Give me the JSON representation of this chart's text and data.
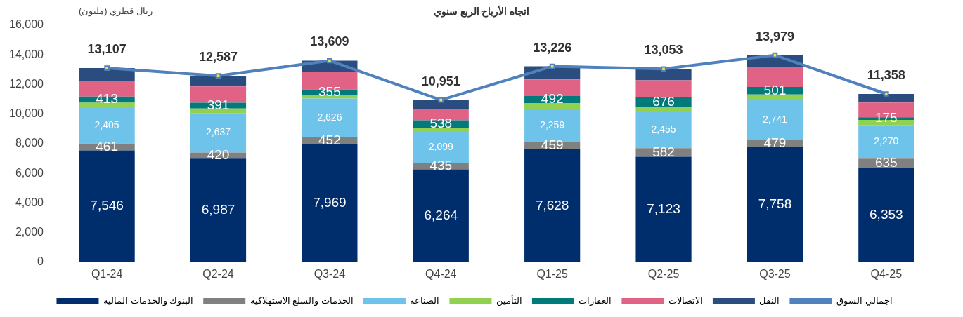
{
  "chart_data": {
    "type": "bar",
    "stacked": true,
    "title": "اتجاه الأرباح الربع سنوي",
    "ylabel": "ريال قطري (مليون)",
    "categories": [
      "Q1-24",
      "Q2-24",
      "Q3-24",
      "Q4-24",
      "Q1-25",
      "Q2-25",
      "Q3-25",
      "Q4-25"
    ],
    "ylim": [
      0,
      16000
    ],
    "yticks": [
      {
        "value": 0,
        "label": "0"
      },
      {
        "value": 2000,
        "label": "2,000"
      },
      {
        "value": 4000,
        "label": "4,000"
      },
      {
        "value": 6000,
        "label": "6,000"
      },
      {
        "value": 8000,
        "label": "8,000"
      },
      {
        "value": 10000,
        "label": "10,000"
      },
      {
        "value": 12000,
        "label": "12,000"
      },
      {
        "value": 14000,
        "label": "14,000"
      },
      {
        "value": 16000,
        "label": "16,000"
      }
    ],
    "grid": false,
    "legend": "bottom",
    "totals": [
      "13,107",
      "12,587",
      "13,609",
      "10,951",
      "13,226",
      "13,053",
      "13,979",
      "11,358"
    ],
    "series": [
      {
        "name": "البنوك والخدمات المالية",
        "color": "#002d6b",
        "values": [
          7546,
          6987,
          7969,
          6264,
          7628,
          7123,
          7758,
          6353
        ],
        "value_labels": [
          "7,546",
          "6,987",
          "7,969",
          "6,264",
          "7,628",
          "7,123",
          "7,758",
          "6,353"
        ]
      },
      {
        "name": "الخدمات والسلع الاستهلاكية",
        "color": "#808080",
        "values": [
          461,
          420,
          452,
          435,
          459,
          582,
          479,
          635
        ],
        "value_labels": [
          "461",
          "420",
          "452",
          "435",
          "459",
          "582",
          "479",
          "635"
        ]
      },
      {
        "name": "الصناعة",
        "color": "#6ec3ea",
        "values": [
          2405,
          2637,
          2626,
          2099,
          2259,
          2455,
          2741,
          2270
        ],
        "value_labels": [
          "2,405",
          "2,637",
          "2,626",
          "2,099",
          "2,259",
          "2,455",
          "2,741",
          "2,270"
        ]
      },
      {
        "name": "التأمين",
        "color": "#92d050",
        "values": [
          350,
          330,
          250,
          250,
          400,
          300,
          350,
          350
        ]
      },
      {
        "name": "العقارات",
        "color": "#007a7a",
        "values": [
          413,
          391,
          355,
          538,
          492,
          676,
          501,
          175
        ],
        "value_labels": [
          "413",
          "391",
          "355",
          "538",
          "492",
          "676",
          "501",
          "175"
        ]
      },
      {
        "name": "الاتصالات",
        "color": "#e06386",
        "values": [
          1050,
          1100,
          1200,
          750,
          1100,
          1150,
          1350,
          1000
        ]
      },
      {
        "name": "النقل",
        "color": "#2b4c7e",
        "values": [
          882,
          722,
          757,
          615,
          888,
          767,
          800,
          575
        ]
      },
      {
        "name": "اجمالي السوق",
        "type": "line",
        "color": "#4f81bd",
        "marker": "square",
        "values": [
          13107,
          12587,
          13609,
          10951,
          13226,
          13053,
          13979,
          11358
        ]
      }
    ]
  }
}
